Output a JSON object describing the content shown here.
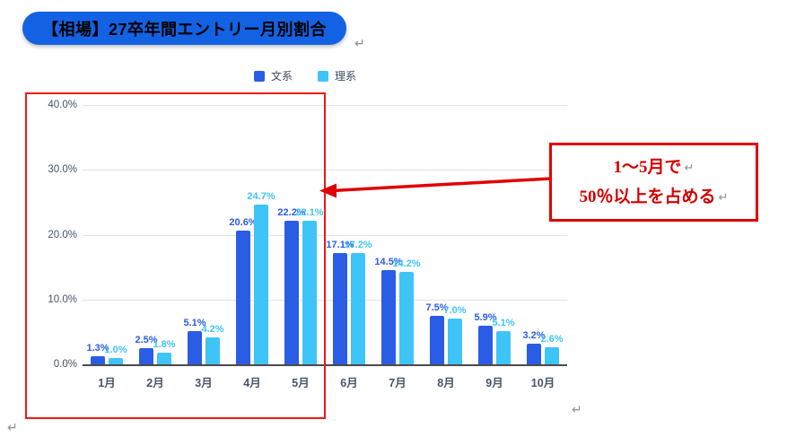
{
  "title": {
    "text": "【相場】27卒年間エントリー月別割合",
    "bg": "#1262E3",
    "fg": "#FFFFFF"
  },
  "return_mark": "↵",
  "legend": {
    "items": [
      {
        "label": "文系",
        "color": "#2B5CE6"
      },
      {
        "label": "理系",
        "color": "#3FC4F8"
      }
    ]
  },
  "chart_data": {
    "type": "bar",
    "title": "【相場】27卒年間エントリー月別割合",
    "categories": [
      "1月",
      "2月",
      "3月",
      "4月",
      "5月",
      "6月",
      "7月",
      "8月",
      "9月",
      "10月"
    ],
    "series": [
      {
        "name": "文系",
        "color": "#2B5CE6",
        "values": [
          1.3,
          2.5,
          5.1,
          20.6,
          22.2,
          17.1,
          14.5,
          7.5,
          5.9,
          3.2
        ]
      },
      {
        "name": "理系",
        "color": "#3FC4F8",
        "values": [
          1.0,
          1.8,
          4.2,
          24.7,
          22.1,
          17.2,
          14.2,
          7.0,
          5.1,
          2.6
        ]
      }
    ],
    "xlabel": "",
    "ylabel": "",
    "ylim": [
      0,
      40
    ],
    "y_ticks": [
      {
        "value": 40,
        "label": "40.0%"
      },
      {
        "value": 30,
        "label": "30.0%"
      },
      {
        "value": 20,
        "label": "20.0%"
      },
      {
        "value": 10,
        "label": "10.0%"
      },
      {
        "value": 0,
        "label": "0.0%"
      }
    ],
    "grid": true,
    "legend_position": "top",
    "value_label_suffix": "%"
  },
  "annotation": {
    "lines": [
      "1～5月で",
      "50％以上を占める"
    ],
    "text_color": "#D40000",
    "border_color": "#E00000"
  },
  "highlight": {
    "color": "#F01818"
  }
}
